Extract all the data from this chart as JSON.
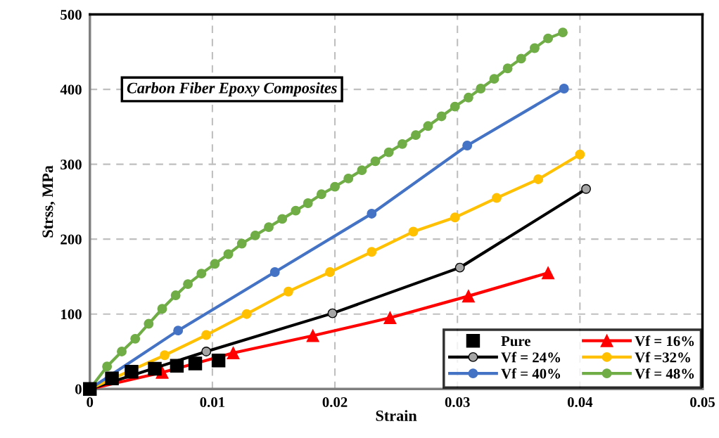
{
  "chart_data": {
    "type": "line",
    "xlabel": "Strain",
    "ylabel": "Strss, MPa",
    "annotations": [
      "Carbon Fiber Epoxy Composites"
    ],
    "xlim": [
      0,
      0.05
    ],
    "xticks": [
      0,
      0.01,
      0.02,
      0.03,
      0.04,
      0.05
    ],
    "ylim": [
      0,
      500
    ],
    "yticks": [
      0,
      100,
      200,
      300,
      400,
      500
    ],
    "grid": true,
    "legend": "bottom right",
    "line_style": "solid",
    "series": [
      {
        "name": "Pure",
        "type": "scatter",
        "marker": "square",
        "color": "#000000",
        "x": [
          0,
          0.0018,
          0.0034,
          0.0053,
          0.0071,
          0.0086,
          0.0105
        ],
        "values": [
          0,
          14,
          23,
          27,
          31,
          34,
          38
        ]
      },
      {
        "name": "Vf = 16%",
        "marker": "triangle",
        "color": "#ff0000",
        "x": [
          0,
          0.0059,
          0.0117,
          0.0182,
          0.0245,
          0.0309,
          0.0374
        ],
        "values": [
          0,
          22,
          48,
          71,
          95,
          124,
          155
        ]
      },
      {
        "name": "Vf = 24%",
        "marker": "circle",
        "color": "#000000",
        "x": [
          0,
          0.0095,
          0.0198,
          0.0302,
          0.0405
        ],
        "values": [
          0,
          50,
          101,
          162,
          267
        ]
      },
      {
        "name": "Vf =32%",
        "marker": "circle",
        "color": "#ffc000",
        "x": [
          0,
          0.0061,
          0.0095,
          0.0128,
          0.0162,
          0.0196,
          0.023,
          0.0264,
          0.0298,
          0.0332,
          0.0366,
          0.04
        ],
        "values": [
          0,
          45,
          72,
          100,
          130,
          156,
          183,
          210,
          229,
          255,
          280,
          313
        ]
      },
      {
        "name": "Vf = 40%",
        "marker": "circle",
        "color": "#4472c4",
        "x": [
          0,
          0.0072,
          0.0151,
          0.023,
          0.0308,
          0.0387
        ],
        "values": [
          0,
          78,
          156,
          234,
          325,
          401
        ]
      },
      {
        "name": "Vf = 48%",
        "marker": "circle",
        "color": "#70ad47",
        "x": [
          0,
          0.0014,
          0.0026,
          0.0037,
          0.0048,
          0.0059,
          0.007,
          0.008,
          0.0091,
          0.0102,
          0.0113,
          0.0124,
          0.0135,
          0.0146,
          0.0157,
          0.0168,
          0.0178,
          0.0189,
          0.02,
          0.0211,
          0.0222,
          0.0233,
          0.0244,
          0.0255,
          0.0266,
          0.0276,
          0.0287,
          0.0298,
          0.0309,
          0.0319,
          0.033,
          0.0341,
          0.0352,
          0.0363,
          0.0374,
          0.0386
        ],
        "values": [
          0,
          30,
          50,
          67,
          87,
          107,
          125,
          140,
          154,
          167,
          180,
          194,
          205,
          216,
          227,
          238,
          248,
          260,
          270,
          281,
          292,
          304,
          316,
          327,
          339,
          351,
          364,
          377,
          389,
          401,
          414,
          428,
          441,
          455,
          468,
          476
        ]
      }
    ]
  }
}
